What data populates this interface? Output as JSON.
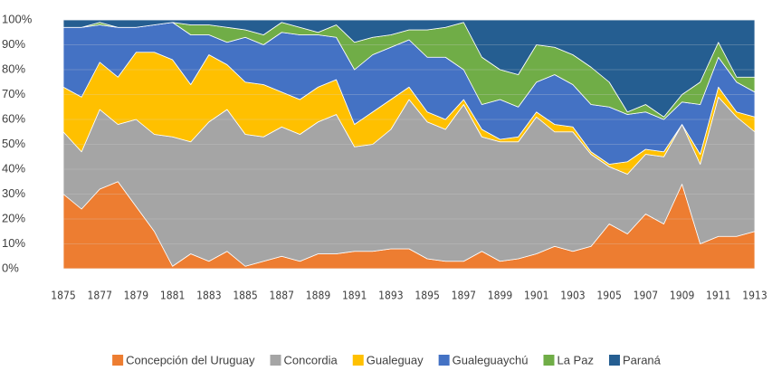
{
  "chart_data": {
    "type": "stacked_area_100",
    "categories": [
      "1875",
      null,
      "1877",
      null,
      "1879",
      null,
      "1881",
      null,
      "1883",
      null,
      "1885",
      null,
      "1887",
      null,
      "1889",
      null,
      "1891",
      null,
      "1893",
      null,
      "1895",
      null,
      "1897",
      null,
      "1899",
      null,
      "1901",
      null,
      "1903",
      null,
      "1905",
      null,
      "1907",
      null,
      "1909",
      null,
      "1911",
      null,
      "1913"
    ],
    "series": [
      {
        "name": "Concepción del Uruguay",
        "color": "#ed7d31",
        "values": [
          30,
          24,
          32,
          35,
          25,
          15,
          1,
          6,
          3,
          7,
          1,
          3,
          5,
          3,
          6,
          6,
          7,
          7,
          8,
          8,
          4,
          3,
          3,
          7,
          3,
          4,
          6,
          9,
          7,
          9,
          18,
          14,
          22,
          18,
          34,
          10,
          13,
          13,
          15
        ]
      },
      {
        "name": "Concordia",
        "color": "#a5a5a5",
        "values": [
          25,
          23,
          32,
          23,
          35,
          39,
          52,
          45,
          56,
          57,
          53,
          50,
          52,
          51,
          53,
          56,
          42,
          43,
          48,
          60,
          55,
          53,
          63,
          46,
          48,
          47,
          55,
          46,
          48,
          37,
          23,
          24,
          24,
          27,
          24,
          32,
          56,
          48,
          40
        ]
      },
      {
        "name": "Gualeguay",
        "color": "#ffc000",
        "values": [
          18,
          22,
          19,
          19,
          27,
          33,
          31,
          23,
          27,
          18,
          21,
          21,
          14,
          14,
          14,
          14,
          9,
          13,
          12,
          5,
          4,
          4,
          2,
          3,
          1,
          2,
          2,
          3,
          2,
          1,
          1,
          5,
          2,
          2,
          0,
          4,
          4,
          2,
          6
        ]
      },
      {
        "name": "Gualeguaychú",
        "color": "#4472c4",
        "values": [
          24,
          28,
          15,
          20,
          10,
          11,
          15,
          20,
          8,
          9,
          18,
          16,
          24,
          26,
          21,
          17,
          22,
          23,
          21,
          19,
          22,
          25,
          12,
          10,
          16,
          12,
          12,
          20,
          17,
          19,
          23,
          19,
          15,
          13,
          9,
          20,
          12,
          12,
          10
        ]
      },
      {
        "name": "La Paz",
        "color": "#70ad47",
        "values": [
          0,
          0,
          1,
          0,
          0,
          0,
          0,
          4,
          4,
          6,
          3,
          4,
          4,
          3,
          1,
          5,
          11,
          7,
          5,
          4,
          11,
          12,
          19,
          19,
          12,
          13,
          15,
          11,
          12,
          15,
          10,
          1,
          3,
          1,
          3,
          9,
          6,
          2,
          6
        ]
      },
      {
        "name": "Paraná",
        "color": "#255e91",
        "values": [
          3,
          3,
          1,
          3,
          3,
          2,
          1,
          2,
          2,
          3,
          4,
          6,
          1,
          3,
          5,
          2,
          9,
          7,
          6,
          4,
          4,
          3,
          1,
          15,
          20,
          22,
          10,
          11,
          14,
          19,
          25,
          37,
          34,
          39,
          30,
          25,
          9,
          23,
          23
        ]
      }
    ],
    "ylim": [
      0,
      100
    ],
    "yticks": [
      {
        "value": 0,
        "label": "0%"
      },
      {
        "value": 10,
        "label": "10%"
      },
      {
        "value": 20,
        "label": "20%"
      },
      {
        "value": 30,
        "label": "30%"
      },
      {
        "value": 40,
        "label": "40%"
      },
      {
        "value": 50,
        "label": "50%"
      },
      {
        "value": 60,
        "label": "60%"
      },
      {
        "value": 70,
        "label": "70%"
      },
      {
        "value": 80,
        "label": "80%"
      },
      {
        "value": 90,
        "label": "90%"
      },
      {
        "value": 100,
        "label": "100%"
      }
    ],
    "grid": true,
    "legend": "bottom"
  }
}
